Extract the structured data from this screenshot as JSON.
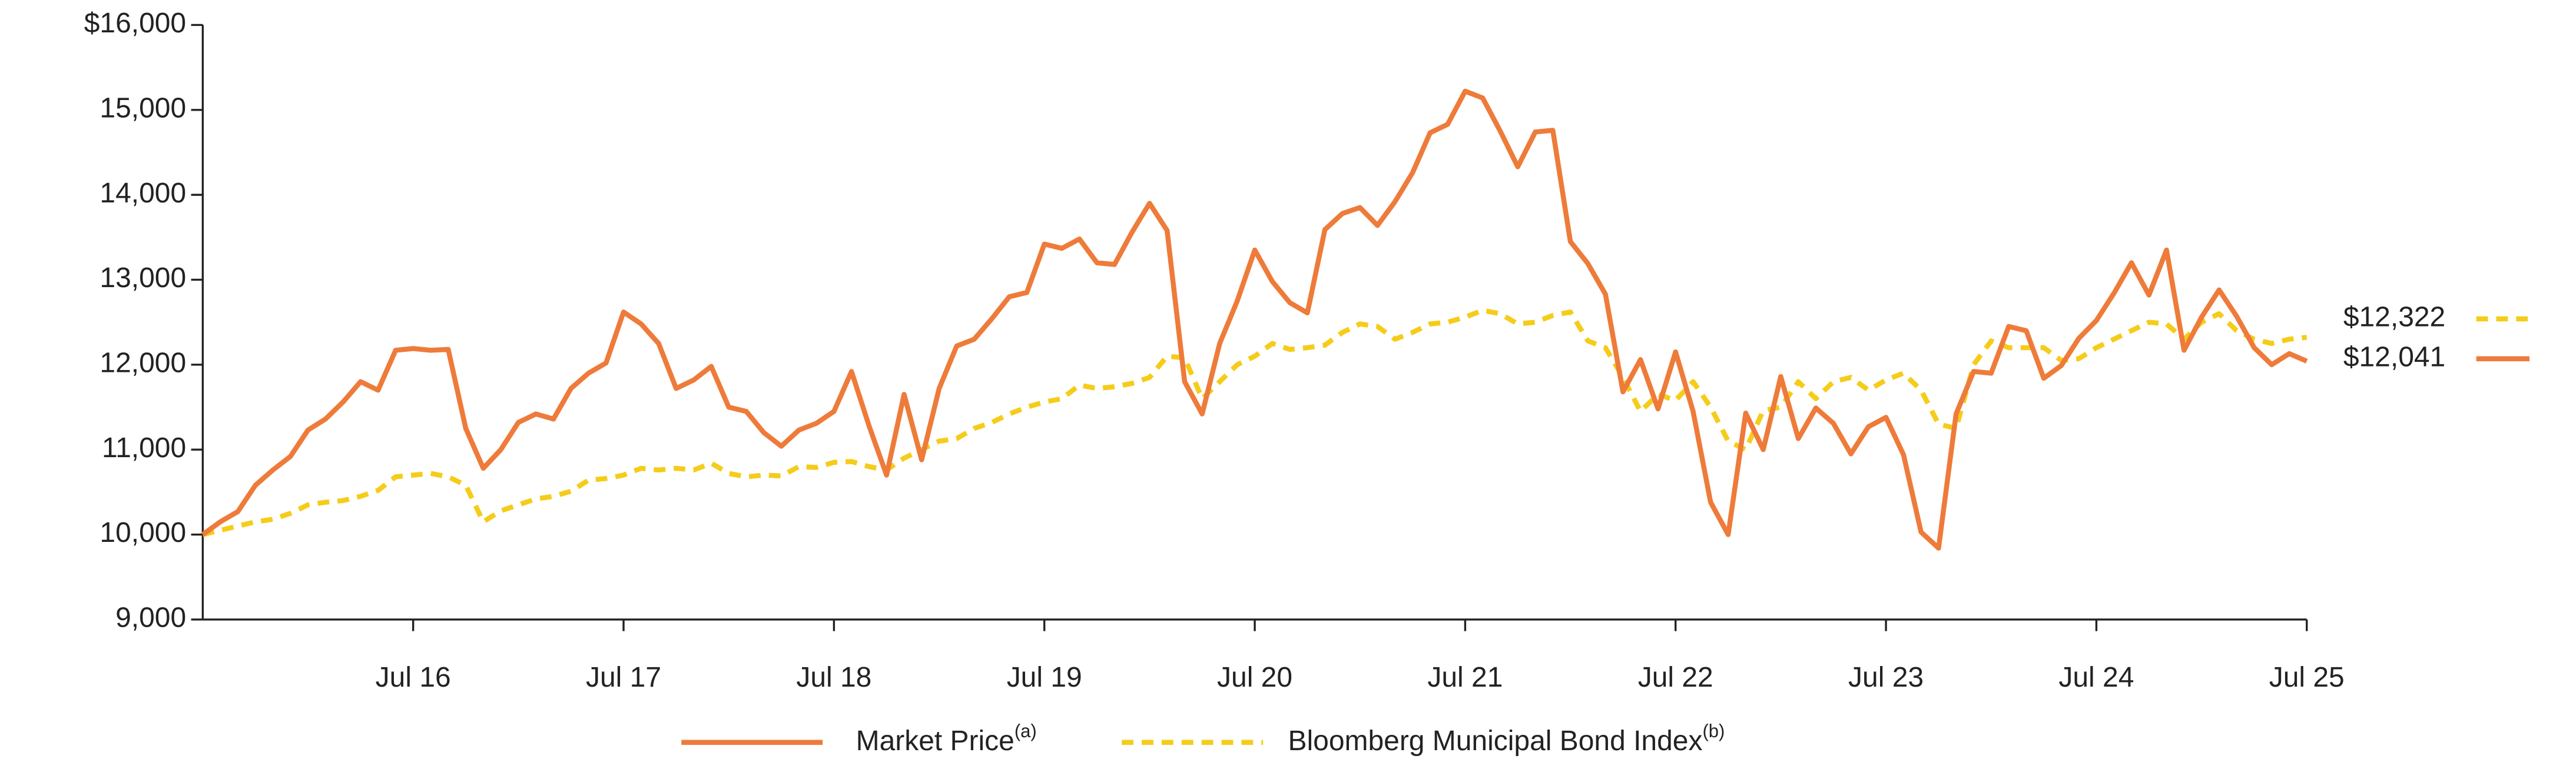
{
  "chart_data": {
    "type": "line",
    "categories": [
      null,
      null,
      null,
      null,
      null,
      null,
      null,
      null,
      null,
      null,
      null,
      null,
      "Jul 16",
      null,
      null,
      null,
      null,
      null,
      null,
      null,
      null,
      null,
      null,
      null,
      "Jul 17",
      null,
      null,
      null,
      null,
      null,
      null,
      null,
      null,
      null,
      null,
      null,
      "Jul 18",
      null,
      null,
      null,
      null,
      null,
      null,
      null,
      null,
      null,
      null,
      null,
      "Jul 19",
      null,
      null,
      null,
      null,
      null,
      null,
      null,
      null,
      null,
      null,
      null,
      "Jul 20",
      null,
      null,
      null,
      null,
      null,
      null,
      null,
      null,
      null,
      null,
      null,
      "Jul 21",
      null,
      null,
      null,
      null,
      null,
      null,
      null,
      null,
      null,
      null,
      null,
      "Jul 22",
      null,
      null,
      null,
      null,
      null,
      null,
      null,
      null,
      null,
      null,
      null,
      "Jul 23",
      null,
      null,
      null,
      null,
      null,
      null,
      null,
      null,
      null,
      null,
      null,
      "Jul 24",
      null,
      null,
      null,
      null,
      null,
      null,
      null,
      null,
      null,
      null,
      null,
      "Jul 25"
    ],
    "ylim": [
      9000,
      16000
    ],
    "yticks": [
      {
        "value": 9000,
        "label": "9,000"
      },
      {
        "value": 10000,
        "label": "10,000"
      },
      {
        "value": 11000,
        "label": "11,000"
      },
      {
        "value": 12000,
        "label": "12,000"
      },
      {
        "value": 13000,
        "label": "13,000"
      },
      {
        "value": 14000,
        "label": "14,000"
      },
      {
        "value": 15000,
        "label": "15,000"
      },
      {
        "value": 16000,
        "label": "$16,000"
      }
    ],
    "series": [
      {
        "name": "Market Price",
        "note": "(a)",
        "color": "#ee7b3a",
        "dashed": false,
        "end_label": "$12,041",
        "values": [
          10000,
          10150,
          10270,
          10580,
          10760,
          10920,
          11230,
          11360,
          11560,
          11800,
          11700,
          12170,
          12190,
          12170,
          12180,
          11250,
          10780,
          11000,
          11320,
          11420,
          11360,
          11720,
          11900,
          12020,
          12620,
          12480,
          12250,
          11720,
          11820,
          11980,
          11500,
          11450,
          11200,
          11040,
          11230,
          11310,
          11450,
          11920,
          11280,
          10700,
          11650,
          10880,
          11720,
          12220,
          12300,
          12540,
          12800,
          12850,
          13420,
          13370,
          13480,
          13200,
          13180,
          13560,
          13900,
          13580,
          11800,
          11420,
          12250,
          12750,
          13350,
          12980,
          12730,
          12610,
          13590,
          13780,
          13850,
          13640,
          13920,
          14260,
          14730,
          14830,
          15220,
          15140,
          14750,
          14330,
          14740,
          14760,
          13450,
          13190,
          12830,
          11680,
          12060,
          11480,
          12150,
          11450,
          10380,
          10000,
          11430,
          11000,
          11860,
          11130,
          11490,
          11310,
          10950,
          11270,
          11380,
          10940,
          10030,
          9840,
          11420,
          11920,
          11900,
          12450,
          12400,
          11840,
          11990,
          12310,
          12520,
          12840,
          13200,
          12820,
          13350,
          12170,
          12560,
          12880,
          12570,
          12200,
          12000,
          12130,
          12041
        ]
      },
      {
        "name": "Bloomberg Municipal Bond Index",
        "note": "(b)",
        "color": "#f5cc19",
        "dashed": true,
        "end_label": "$12,322",
        "values": [
          10000,
          10050,
          10100,
          10150,
          10180,
          10250,
          10350,
          10380,
          10400,
          10450,
          10520,
          10680,
          10700,
          10720,
          10680,
          10580,
          10150,
          10280,
          10350,
          10420,
          10450,
          10510,
          10640,
          10660,
          10700,
          10780,
          10760,
          10780,
          10760,
          10840,
          10720,
          10680,
          10700,
          10690,
          10800,
          10790,
          10850,
          10860,
          10800,
          10760,
          10900,
          11000,
          11100,
          11130,
          11250,
          11320,
          11420,
          11500,
          11560,
          11600,
          11760,
          11720,
          11740,
          11780,
          11850,
          12100,
          12080,
          11600,
          11800,
          12000,
          12100,
          12250,
          12180,
          12200,
          12230,
          12380,
          12480,
          12450,
          12300,
          12380,
          12480,
          12500,
          12560,
          12640,
          12600,
          12480,
          12500,
          12580,
          12620,
          12280,
          12200,
          11850,
          11450,
          11650,
          11580,
          11800,
          11500,
          11100,
          11000,
          11460,
          11500,
          11800,
          11600,
          11800,
          11850,
          11700,
          11820,
          11900,
          11700,
          11300,
          11250,
          12000,
          12280,
          12200,
          12200,
          12200,
          12050,
          12070,
          12200,
          12300,
          12400,
          12500,
          12480,
          12300,
          12500,
          12600,
          12400,
          12300,
          12250,
          12300,
          12322
        ]
      }
    ]
  }
}
